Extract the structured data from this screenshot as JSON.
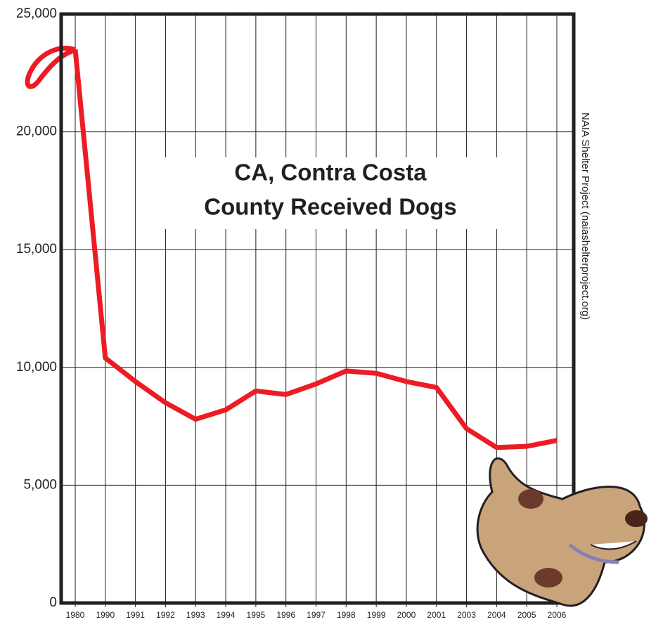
{
  "chart_data": {
    "type": "line",
    "title": [
      "CA, Contra Costa",
      "County Received Dogs"
    ],
    "source": "NAIA Shelter Project (naiashelterproject.org)",
    "categories": [
      "1980",
      "1990",
      "1991",
      "1992",
      "1993",
      "1994",
      "1995",
      "1996",
      "1997",
      "1998",
      "1999",
      "2000",
      "2001",
      "2003",
      "2004",
      "2005",
      "2006"
    ],
    "values": [
      23500,
      10400,
      9400,
      8500,
      7800,
      8200,
      9000,
      8850,
      9300,
      9850,
      9750,
      9400,
      9150,
      7400,
      6600,
      6650,
      6900
    ],
    "color": "#ed1c24",
    "ylim": [
      0,
      25000
    ],
    "yticks": [
      0,
      {
        "value": 5000,
        "label": "5,000"
      },
      {
        "value": 10000,
        "label": "10,000"
      },
      {
        "value": 15000,
        "label": "15,000"
      },
      {
        "value": 20000,
        "label": "20,000"
      },
      {
        "value": 25000,
        "label": "25,000"
      }
    ],
    "grid": true
  }
}
